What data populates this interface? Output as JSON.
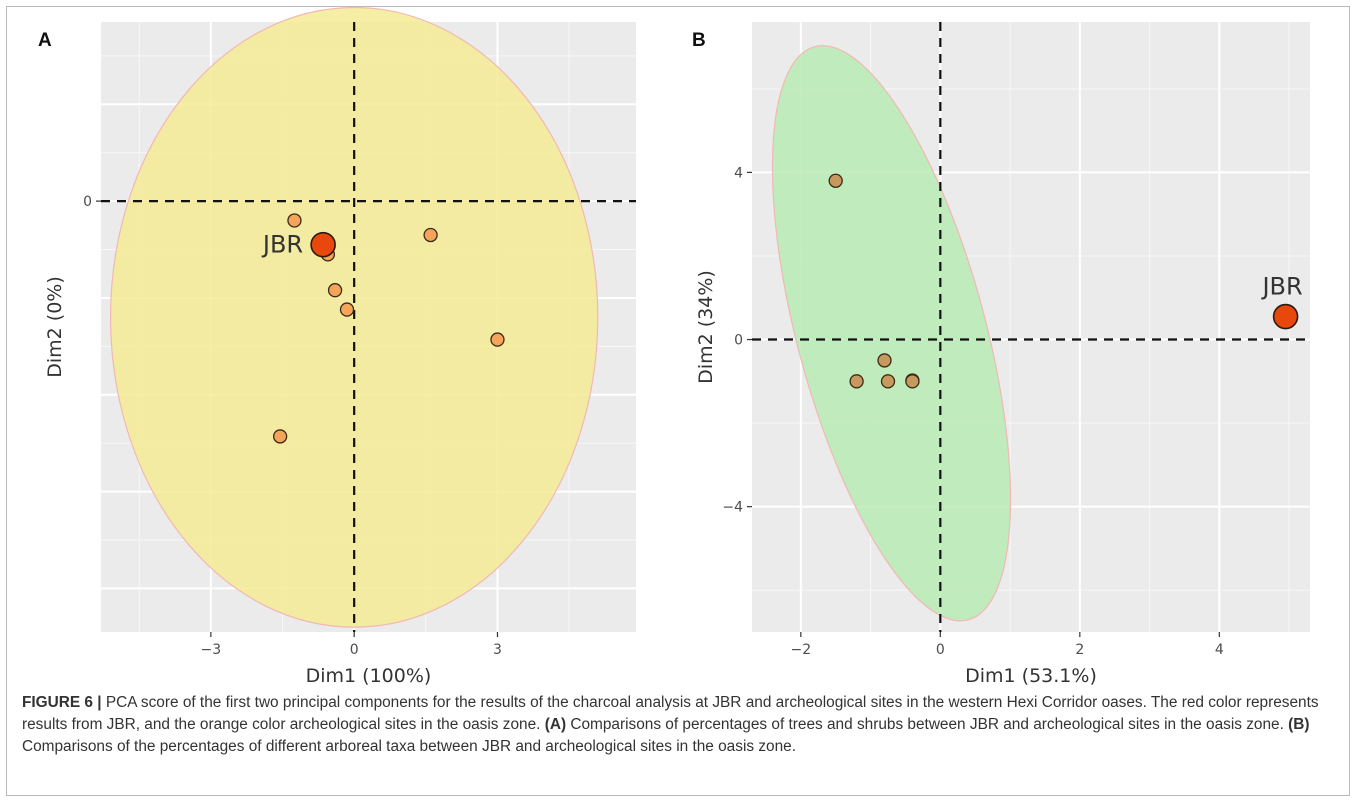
{
  "chart_data": [
    {
      "panel_label": "A",
      "type": "scatter",
      "xlabel": "Dim1 (100%)",
      "ylabel": "Dim2 (0%)",
      "xlim": [
        -5.3,
        5.9
      ],
      "ylim": [
        -4.45,
        1.85
      ],
      "x_ticks": [
        -3,
        0,
        3
      ],
      "x_tick_labels": [
        "−3",
        "0",
        "3"
      ],
      "y_ticks": [
        0
      ],
      "y_tick_labels": [
        "0"
      ],
      "ellipse": {
        "cx": 0.0,
        "cy": -1.2,
        "rx": 5.1,
        "ry": 3.2,
        "color": "#f5eb94"
      },
      "points": [
        {
          "x": -1.25,
          "y": -0.2,
          "color": "#f5a55a"
        },
        {
          "x": -0.55,
          "y": -0.55,
          "color": "#f5a55a"
        },
        {
          "x": -0.4,
          "y": -0.92,
          "color": "#f5a55a"
        },
        {
          "x": -0.15,
          "y": -1.12,
          "color": "#f5a55a"
        },
        {
          "x": 1.6,
          "y": -0.35,
          "color": "#f5a55a"
        },
        {
          "x": 3.0,
          "y": -1.43,
          "color": "#f5a55a"
        },
        {
          "x": -1.55,
          "y": -2.43,
          "color": "#f5a55a"
        }
      ],
      "highlight": {
        "label": "JBR",
        "x": -0.65,
        "y": -0.45,
        "color": "#e8480c"
      }
    },
    {
      "panel_label": "B",
      "type": "scatter",
      "xlabel": "Dim1 (53.1%)",
      "ylabel": "Dim2 (34%)",
      "xlim": [
        -2.7,
        5.3
      ],
      "ylim": [
        -7.0,
        7.6
      ],
      "x_ticks": [
        -2,
        0,
        2,
        4
      ],
      "x_tick_labels": [
        "−2",
        "0",
        "2",
        "4"
      ],
      "y_ticks": [
        4,
        0,
        -4
      ],
      "y_tick_labels": [
        "4",
        "0",
        "−4"
      ],
      "ellipse": {
        "cx": -0.7,
        "cy": 0.15,
        "rx": 1.35,
        "ry": 7.1,
        "angle": -15,
        "color": "#b9ebb4"
      },
      "points": [
        {
          "x": -1.5,
          "y": 3.8,
          "color": "#c69a5e"
        },
        {
          "x": -0.8,
          "y": -0.5,
          "color": "#c69a5e"
        },
        {
          "x": -1.2,
          "y": -1.0,
          "color": "#c69a5e"
        },
        {
          "x": -0.75,
          "y": -1.0,
          "color": "#c69a5e"
        },
        {
          "x": -0.4,
          "y": -0.98,
          "color": "#c69a5e"
        },
        {
          "x": -0.4,
          "y": -1.0,
          "color": "#c69a5e"
        }
      ],
      "highlight": {
        "label": "JBR",
        "x": 4.95,
        "y": 0.55,
        "color": "#e8480c"
      }
    }
  ],
  "caption": {
    "figure_label": "FIGURE 6 |",
    "text_1": " PCA score of the first two principal components for the results of the charcoal analysis at JBR and archeological sites in the western Hexi Corridor oases. The red color represents results from JBR, and the orange color archeological sites in the oasis zone. ",
    "label_a": "(A)",
    "text_2": " Comparisons of percentages of trees and shrubs between JBR and archeological sites in the oasis zone. ",
    "label_b": "(B)",
    "text_3": " Comparisons of the percentages of different arboreal taxa between JBR and archeological sites in the oasis zone."
  }
}
